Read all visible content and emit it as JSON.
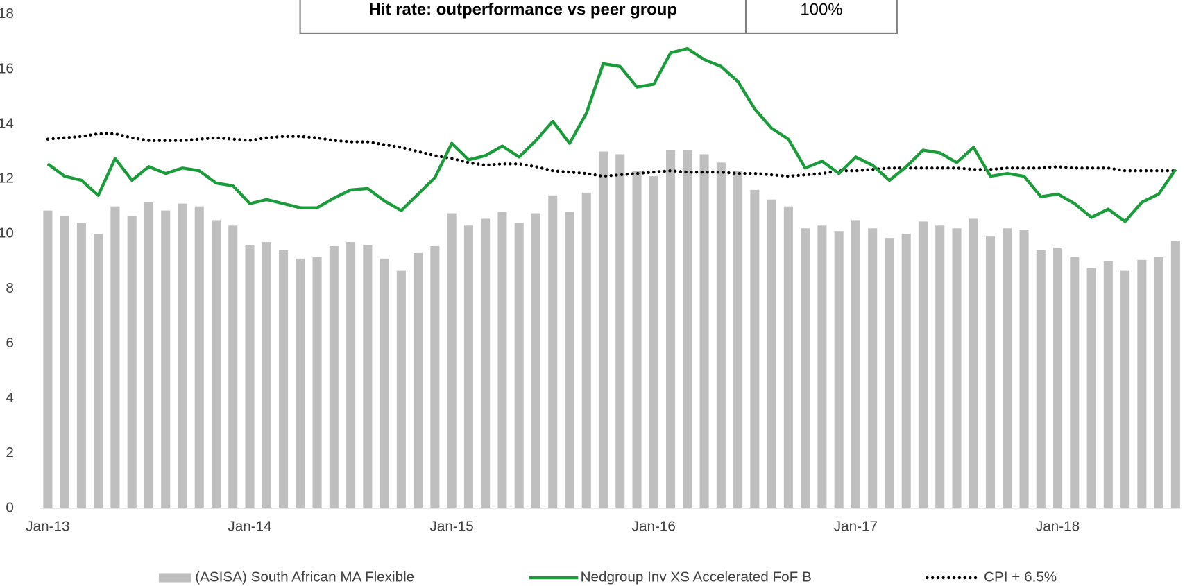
{
  "chart_data": {
    "type": "bar-line",
    "annotation": {
      "label": "Hit rate: outperformance vs peer group",
      "value": "100%"
    },
    "categories": [
      "Jan-13",
      null,
      null,
      null,
      null,
      null,
      null,
      null,
      null,
      null,
      null,
      null,
      "Jan-14",
      null,
      null,
      null,
      null,
      null,
      null,
      null,
      null,
      null,
      null,
      null,
      "Jan-15",
      null,
      null,
      null,
      null,
      null,
      null,
      null,
      null,
      null,
      null,
      null,
      "Jan-16",
      null,
      null,
      null,
      null,
      null,
      null,
      null,
      null,
      null,
      null,
      null,
      "Jan-17",
      null,
      null,
      null,
      null,
      null,
      null,
      null,
      null,
      null,
      null,
      null,
      "Jan-18",
      null,
      null,
      null,
      null,
      null,
      null,
      null
    ],
    "series": [
      {
        "name": "(ASISA) South African MA Flexible",
        "kind": "bar",
        "color": "#bfbfbf",
        "values": [
          10.85,
          10.65,
          10.4,
          10.0,
          11.0,
          10.65,
          11.15,
          10.85,
          11.1,
          11.0,
          10.5,
          10.3,
          9.6,
          9.7,
          9.4,
          9.1,
          9.15,
          9.55,
          9.7,
          9.6,
          9.1,
          8.65,
          9.3,
          9.55,
          10.75,
          10.3,
          10.55,
          10.8,
          10.4,
          10.75,
          11.4,
          10.8,
          11.5,
          13.0,
          12.9,
          12.3,
          12.1,
          13.05,
          13.05,
          12.9,
          12.6,
          12.3,
          11.6,
          11.25,
          11.0,
          10.2,
          10.3,
          10.1,
          10.5,
          10.2,
          9.85,
          10.0,
          10.45,
          10.3,
          10.2,
          10.55,
          9.9,
          10.2,
          10.15,
          9.4,
          9.5,
          9.15,
          8.75,
          9.0,
          8.65,
          9.05,
          9.15,
          9.75
        ]
      },
      {
        "name": "Nedgroup Inv XS Accelerated FoF B",
        "kind": "line",
        "color": "#1a9c3a",
        "values": [
          12.55,
          12.1,
          11.95,
          11.4,
          12.75,
          11.95,
          12.45,
          12.2,
          12.4,
          12.3,
          11.85,
          11.75,
          11.1,
          11.25,
          11.1,
          10.95,
          10.95,
          11.3,
          11.6,
          11.65,
          11.2,
          10.85,
          11.45,
          12.05,
          13.3,
          12.7,
          12.85,
          13.2,
          12.8,
          13.4,
          14.1,
          13.3,
          14.4,
          16.2,
          16.1,
          15.35,
          15.45,
          16.6,
          16.75,
          16.35,
          16.1,
          15.55,
          14.55,
          13.85,
          13.45,
          12.4,
          12.65,
          12.2,
          12.8,
          12.5,
          11.95,
          12.45,
          13.05,
          12.95,
          12.6,
          13.15,
          12.1,
          12.2,
          12.1,
          11.35,
          11.45,
          11.1,
          10.6,
          10.9,
          10.45,
          11.15,
          11.45,
          12.35
        ]
      },
      {
        "name": "CPI + 6.5%",
        "kind": "dotted",
        "color": "#000000",
        "values": [
          13.45,
          13.5,
          13.55,
          13.65,
          13.65,
          13.5,
          13.4,
          13.4,
          13.4,
          13.45,
          13.5,
          13.45,
          13.4,
          13.5,
          13.55,
          13.55,
          13.5,
          13.4,
          13.35,
          13.35,
          13.25,
          13.15,
          13.0,
          12.85,
          12.75,
          12.6,
          12.5,
          12.55,
          12.55,
          12.45,
          12.3,
          12.25,
          12.2,
          12.1,
          12.15,
          12.2,
          12.25,
          12.3,
          12.25,
          12.25,
          12.25,
          12.2,
          12.2,
          12.15,
          12.1,
          12.15,
          12.2,
          12.3,
          12.3,
          12.35,
          12.4,
          12.4,
          12.4,
          12.4,
          12.4,
          12.35,
          12.35,
          12.4,
          12.4,
          12.4,
          12.45,
          12.4,
          12.4,
          12.4,
          12.3,
          12.3,
          12.3,
          12.3
        ]
      }
    ],
    "ylim": [
      0,
      18
    ],
    "yticks": [
      0,
      2,
      4,
      6,
      8,
      10,
      12,
      14,
      16,
      18
    ],
    "grid": false
  }
}
